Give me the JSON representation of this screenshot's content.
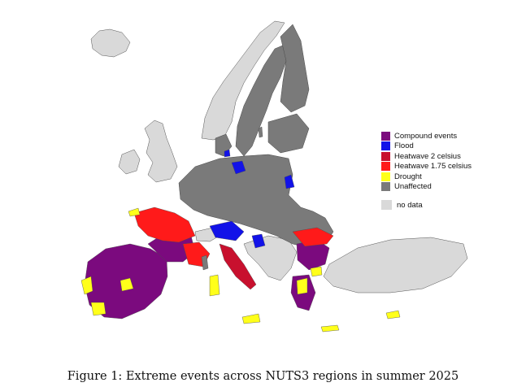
{
  "legend": {
    "items": [
      {
        "label": "Compound events",
        "color": "#7b0a7e"
      },
      {
        "label": "Flood",
        "color": "#1212e8"
      },
      {
        "label": "Heatwave 2 celsius",
        "color": "#c8102e"
      },
      {
        "label": "Heatwave 1.75 celsius",
        "color": "#ff1a1a"
      },
      {
        "label": "Drought",
        "color": "#ffff1a"
      },
      {
        "label": "Unaffected",
        "color": "#7a7a7a"
      }
    ],
    "no_data": {
      "label": "no data",
      "color": "#d9d9d9"
    }
  },
  "caption": "Figure 1: Extreme events across NUTS3 regions in summer 2025",
  "colors": {
    "unaffected": "#7a7a7a",
    "no_data": "#d9d9d9",
    "compound": "#7b0a7e",
    "flood": "#1212e8",
    "heatwave2": "#c8102e",
    "heatwave175": "#ff1a1a",
    "drought": "#ffff1a",
    "border": "#4a4a4a"
  }
}
